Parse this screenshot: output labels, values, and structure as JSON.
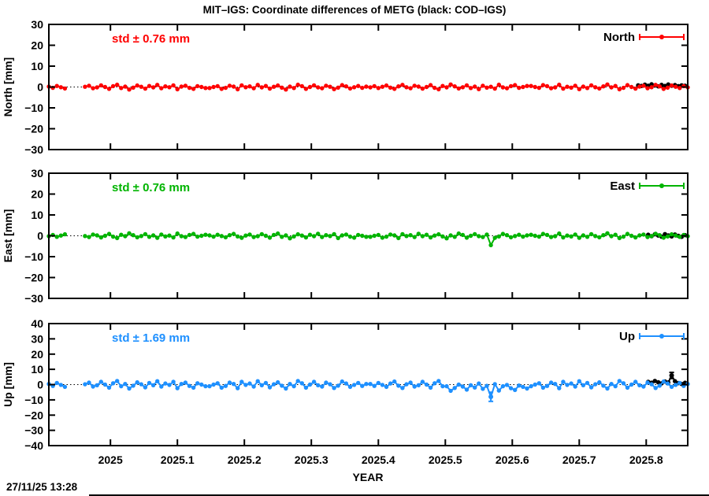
{
  "header": {
    "title": "MIT–IGS: Coordinate differences of METG (black: COD–IGS)"
  },
  "footer": {
    "timestamp": "27/11/25 13:28"
  },
  "chart_data": {
    "type": "scatter",
    "title": "MIT–IGS: Coordinate differences of METG (black: COD–IGS)",
    "xlabel": "YEAR",
    "xlim": [
      2024.908,
      2025.862
    ],
    "grid": "zero-line-dotted-only",
    "legend_position": "top-right-inside",
    "black_series_meaning": "COD–IGS",
    "x_ticks": [
      {
        "value": 2025.0,
        "label": "2025"
      },
      {
        "value": 2025.1,
        "label": "2025.1"
      },
      {
        "value": 2025.2,
        "label": "2025.2"
      },
      {
        "value": 2025.3,
        "label": "2025.3"
      },
      {
        "value": 2025.4,
        "label": "2025.4"
      },
      {
        "value": 2025.5,
        "label": "2025.5"
      },
      {
        "value": 2025.6,
        "label": "2025.6"
      },
      {
        "value": 2025.7,
        "label": "2025.7"
      },
      {
        "value": 2025.8,
        "label": "2025.8"
      }
    ],
    "panels": [
      {
        "name": "North",
        "ylabel": "North [mm]",
        "ylim": [
          -30,
          30
        ],
        "yticks": [
          {
            "value": 30,
            "label": "30"
          },
          {
            "value": 20,
            "label": "20"
          },
          {
            "value": 10,
            "label": "10"
          },
          {
            "value": 0,
            "label": "0"
          },
          {
            "value": -10,
            "label": "−10"
          },
          {
            "value": -20,
            "label": "−20"
          },
          {
            "value": -30,
            "label": "−30"
          }
        ],
        "color": "#ff0000",
        "std_label": "std ± 0.76 mm",
        "legend_label": "North",
        "series": {
          "x0": 2024.908,
          "dx": 0.006,
          "y": [
            0.2,
            -0.4,
            0.5,
            -0.1,
            -0.7,
            null,
            null,
            null,
            null,
            0.1,
            0.6,
            -0.6,
            -0.2,
            0.8,
            0.0,
            -0.9,
            0.4,
            1.1,
            -0.5,
            0.2,
            -1.2,
            -0.3,
            0.7,
            0.1,
            -0.8,
            0.5,
            -0.2,
            1.0,
            -0.6,
            0.3,
            -0.1,
            0.8,
            -1.1,
            0.2,
            0.6,
            -0.4,
            -0.9,
            0.4,
            0.0,
            -0.5,
            -0.5,
            0.0,
            0.4,
            -0.9,
            -0.4,
            0.6,
            0.2,
            -1.1,
            0.8,
            -0.1,
            0.3,
            -0.6,
            1.0,
            -0.2,
            0.5,
            -0.8,
            0.1,
            0.7,
            -0.3,
            -1.2,
            0.2,
            -0.5,
            1.1,
            0.4,
            -0.9,
            0.0,
            0.8,
            -0.2,
            -0.6,
            0.6,
            0.1,
            -1.0,
            -0.3,
            0.9,
            0.3,
            -0.7,
            -0.1,
            0.5,
            -0.4,
            0.2,
            -0.2,
            0.4,
            -0.5,
            0.1,
            0.7,
            -0.3,
            -0.9,
            0.3,
            1.0,
            -0.1,
            -0.6,
            0.6,
            0.2,
            -0.8,
            0.0,
            0.9,
            -0.4,
            -1.1,
            0.5,
            -0.2,
            1.2,
            0.3,
            -0.7,
            -0.1,
            0.8,
            -0.5,
            0.2,
            -1.0,
            0.6,
            -0.3,
            0.1,
            -0.8,
            1.1,
            -0.2,
            -0.6,
            0.4,
            0.9,
            -0.4,
            0.0,
            0.5,
            0.5,
            0.0,
            -0.4,
            0.9,
            0.4,
            -0.6,
            -0.2,
            1.1,
            -0.8,
            0.1,
            -0.3,
            0.6,
            -1.0,
            0.2,
            -0.5,
            0.8,
            -0.1,
            -0.7,
            0.3,
            1.2,
            -0.2,
            0.5,
            -1.1,
            -0.4,
            0.9,
            0.0,
            -0.8,
            0.2,
            0.6,
            -0.6,
            -0.1,
            1.0,
            0.3,
            -0.9,
            -0.3,
            0.7,
            0.1,
            -0.5,
            0.4,
            -0.2
          ]
        },
        "black_series": {
          "x0": 2025.788,
          "dx": 0.005,
          "y": [
            0.8,
            0.5,
            1.1,
            0.6,
            1.3,
            0.7,
            0.3,
            1.0,
            0.5,
            1.2,
            0.6,
            0.9,
            0.4,
            0.8,
            0.6
          ]
        },
        "errorbars": []
      },
      {
        "name": "East",
        "ylabel": "East [mm]",
        "ylim": [
          -30,
          30
        ],
        "yticks": [
          {
            "value": 30,
            "label": "30"
          },
          {
            "value": 20,
            "label": "20"
          },
          {
            "value": 10,
            "label": "10"
          },
          {
            "value": 0,
            "label": "0"
          },
          {
            "value": -10,
            "label": "−10"
          },
          {
            "value": -20,
            "label": "−20"
          },
          {
            "value": -30,
            "label": "−30"
          }
        ],
        "color": "#00b400",
        "std_label": "std ± 0.76 mm",
        "legend_label": "East",
        "series": {
          "x0": 2024.908,
          "dx": 0.006,
          "y": [
            -0.2,
            0.4,
            -0.5,
            0.1,
            0.7,
            null,
            null,
            null,
            null,
            -0.1,
            -0.6,
            0.6,
            0.2,
            -0.8,
            0.0,
            0.9,
            -0.4,
            -1.1,
            0.5,
            -0.2,
            1.2,
            0.3,
            -0.7,
            -0.1,
            0.8,
            -0.5,
            0.2,
            -1.0,
            0.6,
            -0.3,
            0.1,
            -0.8,
            1.1,
            -0.2,
            -0.6,
            0.4,
            0.9,
            -0.4,
            0.0,
            0.5,
            0.2,
            -0.4,
            0.5,
            -0.1,
            -0.7,
            0.3,
            0.9,
            -0.3,
            -1.0,
            0.1,
            0.6,
            -0.6,
            -0.2,
            0.8,
            0.0,
            -0.9,
            0.4,
            1.1,
            -0.5,
            0.2,
            -1.2,
            -0.3,
            0.7,
            0.1,
            -0.8,
            0.5,
            -0.2,
            1.0,
            -0.6,
            0.3,
            -0.1,
            0.8,
            -1.1,
            0.2,
            0.6,
            -0.4,
            -0.9,
            0.4,
            0.0,
            -0.5,
            -0.5,
            0.0,
            0.4,
            -0.9,
            -0.4,
            0.6,
            0.2,
            -1.1,
            0.8,
            -0.1,
            0.3,
            -0.6,
            1.0,
            -0.2,
            0.5,
            -0.8,
            0.1,
            0.7,
            -0.3,
            -1.2,
            0.2,
            -0.5,
            1.1,
            0.4,
            -0.9,
            0.0,
            0.8,
            -0.2,
            -0.6,
            0.6,
            -4.5,
            -1.0,
            -0.3,
            0.9,
            0.3,
            -0.7,
            -0.1,
            0.5,
            -0.4,
            0.2,
            0.5,
            0.0,
            -0.4,
            0.9,
            0.4,
            -0.6,
            -0.2,
            1.1,
            -0.8,
            0.1,
            -0.3,
            0.6,
            -1.0,
            0.2,
            -0.5,
            0.8,
            -0.1,
            -0.7,
            0.3,
            1.2,
            -0.2,
            0.5,
            -1.1,
            -0.4,
            0.9,
            0.0,
            -0.8,
            0.2,
            0.6,
            -0.6,
            -0.1,
            1.0,
            0.3,
            -0.9,
            -0.3,
            0.7,
            0.1,
            -0.5,
            0.4,
            -0.2
          ]
        },
        "black_series": {
          "x0": 2025.803,
          "dx": 0.005,
          "y": [
            0.5,
            -0.2,
            0.7,
            0.1,
            -0.4,
            0.8,
            0.2,
            -0.3,
            0.6,
            0.0,
            -0.5,
            0.3
          ]
        },
        "errorbars": []
      },
      {
        "name": "Up",
        "ylabel": "Up [mm]",
        "ylim": [
          -40,
          40
        ],
        "yticks": [
          {
            "value": 40,
            "label": "40"
          },
          {
            "value": 30,
            "label": "30"
          },
          {
            "value": 20,
            "label": "20"
          },
          {
            "value": 10,
            "label": "10"
          },
          {
            "value": 0,
            "label": "0"
          },
          {
            "value": -10,
            "label": "−10"
          },
          {
            "value": -20,
            "label": "−20"
          },
          {
            "value": -30,
            "label": "−30"
          },
          {
            "value": -40,
            "label": "−40"
          }
        ],
        "color": "#1e90ff",
        "std_label": "std ± 1.69 mm",
        "legend_label": "Up",
        "series": {
          "x0": 2024.908,
          "dx": 0.006,
          "y": [
            0.4,
            -0.9,
            1.1,
            -0.2,
            -1.5,
            null,
            null,
            null,
            null,
            0.2,
            1.3,
            -1.3,
            -0.4,
            1.8,
            0.0,
            -2.0,
            0.9,
            2.4,
            -1.1,
            0.4,
            -2.6,
            -0.7,
            1.5,
            0.2,
            -1.8,
            1.1,
            -0.4,
            2.2,
            -1.3,
            0.7,
            -0.2,
            1.8,
            -2.4,
            0.4,
            1.3,
            -0.9,
            -2.0,
            0.9,
            0.0,
            -1.1,
            -1.1,
            0.0,
            0.9,
            -2.0,
            -0.9,
            1.3,
            0.4,
            -2.4,
            1.8,
            -0.2,
            0.7,
            -1.3,
            2.2,
            -0.4,
            1.1,
            -1.8,
            0.2,
            1.5,
            -0.7,
            -2.6,
            0.4,
            -1.1,
            2.4,
            0.9,
            -2.0,
            0.0,
            1.8,
            -0.4,
            -1.3,
            1.3,
            0.2,
            -2.2,
            -0.7,
            2.0,
            0.7,
            -1.5,
            -0.2,
            1.1,
            -0.9,
            0.4,
            0.4,
            -0.9,
            1.1,
            -0.2,
            -1.5,
            0.7,
            2.0,
            -0.7,
            -2.2,
            0.2,
            1.3,
            -1.3,
            -0.4,
            1.8,
            0.0,
            -2.0,
            0.9,
            2.4,
            -1.1,
            -1.1,
            -4.1,
            -2.2,
            0.0,
            -1.3,
            -3.3,
            -0.4,
            -1.9,
            0.7,
            -2.8,
            -0.8,
            -8.0,
            0.3,
            -3.9,
            -1.1,
            -0.2,
            -2.4,
            -3.5,
            -0.6,
            -1.5,
            -2.6,
            -1.1,
            0.0,
            0.9,
            -2.0,
            -0.9,
            1.3,
            0.4,
            -2.4,
            1.8,
            -0.2,
            0.7,
            -1.3,
            2.2,
            -0.4,
            1.1,
            -1.8,
            0.2,
            1.5,
            -0.7,
            -2.6,
            0.4,
            -1.1,
            2.4,
            0.9,
            -2.0,
            0.0,
            1.8,
            -0.4,
            -1.3,
            1.3,
            0.2,
            -2.2,
            -0.7,
            2.0,
            0.7,
            -1.5,
            -0.2,
            1.1,
            -0.9,
            0.4
          ]
        },
        "black_series": {
          "x0": 2025.803,
          "dx": 0.005,
          "y": [
            1.8,
            1.2,
            2.4,
            1.5,
            0.8,
            2.0,
            1.4,
            6.0,
            2.2,
            1.0,
            0.4,
            1.2
          ]
        },
        "errorbars": [
          {
            "series": "main",
            "x": 2025.568,
            "y": -8.0,
            "e": 3.0
          },
          {
            "series": "black",
            "x": 2025.838,
            "y": 6.0,
            "e": 2.0
          }
        ]
      }
    ]
  }
}
